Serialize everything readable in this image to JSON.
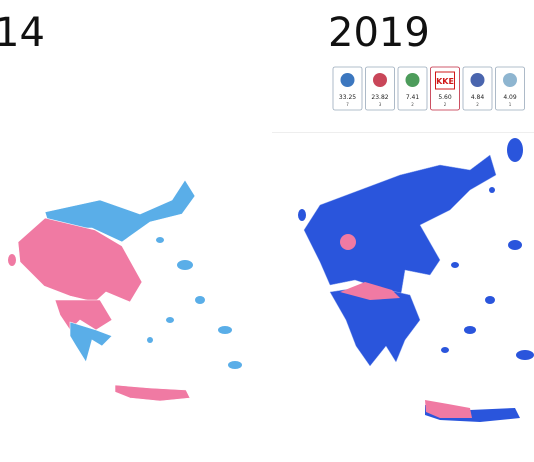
{
  "titles": {
    "left": "14",
    "right": "2019"
  },
  "parties": [
    {
      "percent": "33.25",
      "seats": "7"
    },
    {
      "percent": "23.82",
      "seats": "3"
    },
    {
      "percent": "7.41",
      "seats": "2"
    },
    {
      "logo": "KKE",
      "percent": "5.60",
      "seats": "2"
    },
    {
      "percent": "4.84",
      "seats": "2"
    },
    {
      "percent": "4.09",
      "seats": "1"
    }
  ]
}
